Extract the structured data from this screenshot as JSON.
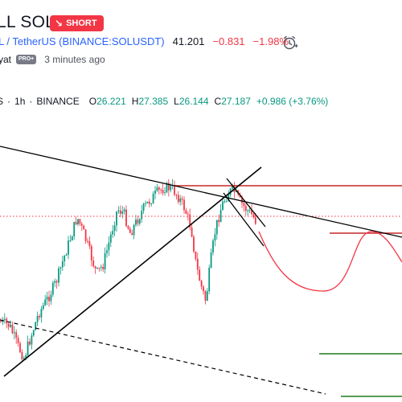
{
  "header": {
    "title": "LL SOL",
    "badge": "SHORT",
    "badge_arrow": "↘",
    "symbol_text": "L / TetherUS (",
    "symbol_ticker": "BINANCE:SOLUSDT",
    "symbol_close": ")",
    "price": "41.201",
    "change": "−0.831",
    "change_pct": "−1.98%",
    "author": "yat",
    "pro_badge": "PRO+",
    "time_ago": "3 minutes ago"
  },
  "legend": {
    "symbol": "S",
    "interval": "1h",
    "exchange": "BINANCE",
    "o_label": "O",
    "o_val": "26.221",
    "h_label": "H",
    "h_val": "27.385",
    "l_label": "L",
    "l_val": "26.144",
    "c_label": "C",
    "c_val": "27.187",
    "chg": "+0.986 (+3.76%)"
  },
  "colors": {
    "up": "#089981",
    "down": "#f23645",
    "brand": "#2962ff",
    "projection": "#f23645",
    "target": "#1e7b1e"
  }
}
